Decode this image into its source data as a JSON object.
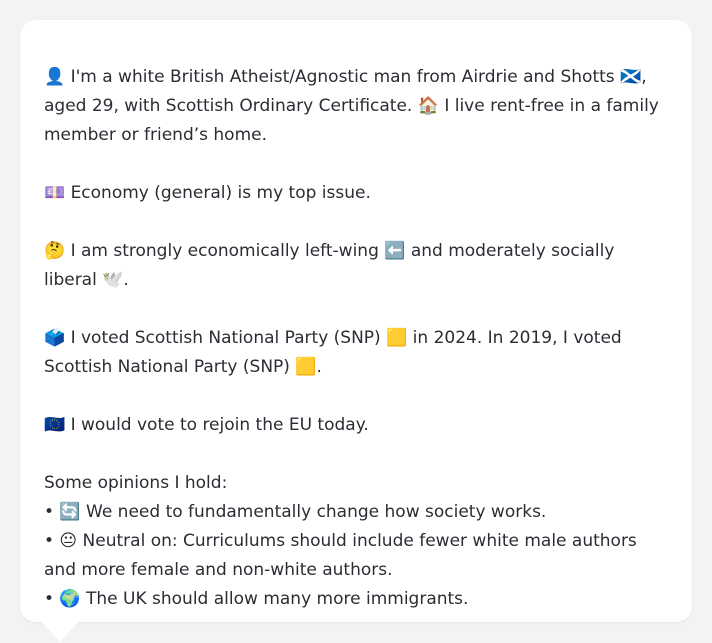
{
  "profile": {
    "intro": "👤 I'm a white British Atheist/Agnostic man from Airdrie and Shotts 🏴󠁧󠁢󠁳󠁣󠁴󠁿, aged 29, with Scottish Ordinary Certificate. 🏠 I live rent-free in a family member or friend’s home.",
    "top_issue": "💷 Economy (general) is my top issue.",
    "ideology": "🤔 I am strongly economically left-wing ⬅️ and moderately socially liberal 🕊️.",
    "vote_history": "🗳️ I voted Scottish National Party (SNP) 🟨 in 2024. In 2019, I voted Scottish National Party (SNP) 🟨.",
    "eu": "🇪🇺 I would vote to rejoin the EU today.",
    "opinions_header": "Some opinions I hold:",
    "opinions": [
      "• 🔄 We need to fundamentally change how society works.",
      "• 😐 Neutral on: Curriculums should include fewer white male authors and more female and non-white authors.",
      "• 🌍 The UK should allow many more immigrants."
    ]
  }
}
